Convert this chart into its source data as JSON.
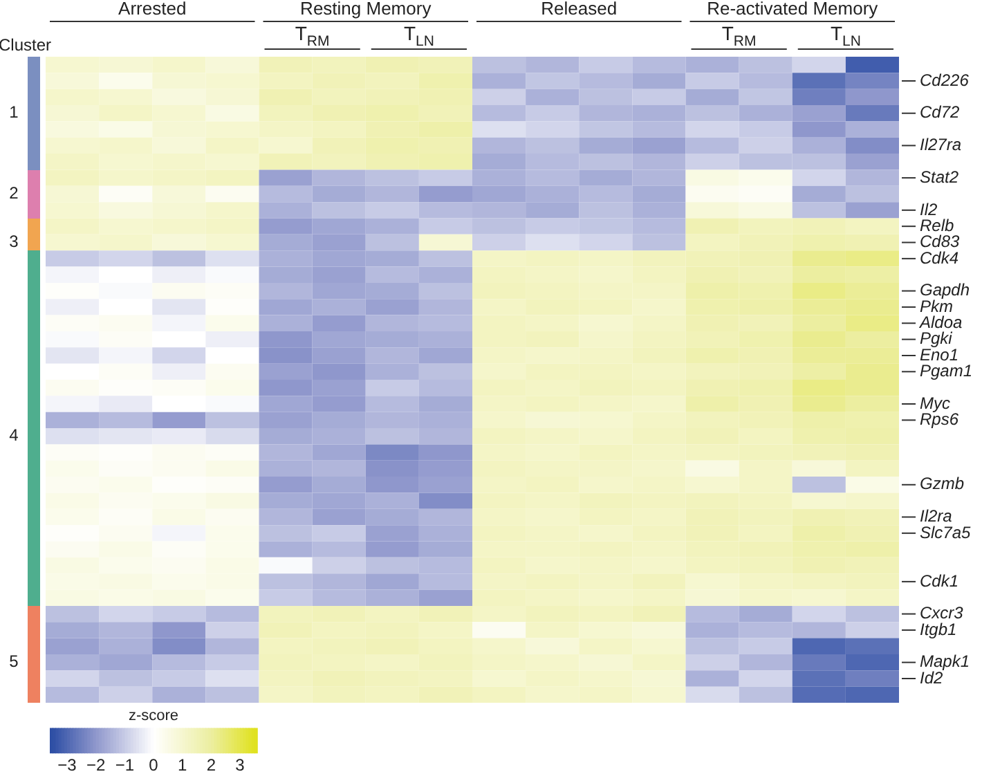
{
  "chart_data": {
    "type": "heatmap",
    "ylabel": "Cluster",
    "clabel": "z-score",
    "clim": [
      -3.6,
      3.6
    ],
    "cticks": [
      {
        "value": -3,
        "label": "−3"
      },
      {
        "value": -2,
        "label": "−2"
      },
      {
        "value": -1,
        "label": "−1"
      },
      0,
      1,
      2,
      3
    ],
    "annotations": [
      "Arrested",
      "Resting Memory",
      "Released",
      "Re-activated Memory",
      "T$_{RM}$",
      "T$_{LN}$",
      "T$_{RM}$",
      "T$_{LN}$"
    ],
    "categories": [
      null,
      null,
      null,
      null,
      null,
      null,
      null,
      null,
      null,
      null,
      null,
      null,
      null,
      null,
      null,
      null
    ],
    "y_categories": [
      null,
      null,
      null,
      "1",
      null,
      null,
      null,
      null,
      "2",
      null,
      null,
      "3",
      null,
      null,
      null,
      null,
      null,
      null,
      null,
      null,
      null,
      null,
      null,
      "4",
      null,
      null,
      null,
      null,
      null,
      null,
      null,
      null,
      null,
      null,
      null,
      null,
      null,
      "5",
      null,
      null
    ],
    "y2_categories": [
      null,
      "Cd226",
      null,
      "Cd72",
      null,
      "Il27ra",
      null,
      "Stat2",
      null,
      "Il2",
      "Relb",
      "Cd83",
      "Cdk4",
      null,
      "Gapdh",
      "Pkm",
      "Aldoa",
      "Pgki",
      "Eno1",
      "Pgam1",
      null,
      "Myc",
      "Rps6",
      null,
      null,
      null,
      "Gzmb",
      null,
      "Il2ra",
      "Slc7a5",
      null,
      null,
      "Cdk1",
      null,
      "Cxcr3",
      "Itgb1",
      null,
      "Mapk1",
      "Id2",
      null
    ],
    "cells": [
      [
        1.0,
        0.9,
        1.1,
        0.8,
        1.5,
        1.4,
        1.6,
        1.5,
        -1.2,
        -1.4,
        -1.0,
        -1.3,
        -1.5,
        -1.2,
        -0.8,
        -3.2
      ],
      [
        0.8,
        0.4,
        0.9,
        1.0,
        1.3,
        1.5,
        1.4,
        1.7,
        -1.5,
        -1.1,
        -1.3,
        -1.6,
        -1.0,
        -1.3,
        -2.8,
        -2.4
      ],
      [
        1.1,
        1.0,
        0.7,
        0.9,
        1.6,
        1.4,
        1.5,
        1.6,
        -0.9,
        -1.5,
        -1.2,
        -1.0,
        -1.6,
        -1.1,
        -2.5,
        -2.0
      ],
      [
        0.9,
        1.2,
        1.0,
        0.6,
        1.4,
        1.6,
        1.7,
        1.5,
        -1.3,
        -1.0,
        -1.4,
        -1.5,
        -1.2,
        -1.5,
        -1.8,
        -2.6
      ],
      [
        0.7,
        0.5,
        0.9,
        1.0,
        1.2,
        1.3,
        1.6,
        1.8,
        -0.6,
        -0.8,
        -1.1,
        -1.3,
        -0.8,
        -1.0,
        -2.0,
        -1.5
      ],
      [
        1.0,
        1.1,
        0.8,
        1.2,
        1.0,
        1.5,
        1.7,
        1.6,
        -1.4,
        -1.2,
        -1.6,
        -1.8,
        -1.3,
        -0.9,
        -1.5,
        -2.2
      ],
      [
        1.2,
        1.0,
        1.1,
        1.0,
        1.5,
        1.4,
        1.6,
        1.7,
        -1.6,
        -1.3,
        -1.2,
        -1.4,
        -0.9,
        -1.2,
        -1.2,
        -1.8
      ],
      [
        1.3,
        1.1,
        1.2,
        1.3,
        -1.8,
        -1.4,
        -1.2,
        -1.0,
        -1.5,
        -1.3,
        -1.6,
        -1.4,
        0.6,
        0.4,
        -0.8,
        -1.4
      ],
      [
        0.9,
        0.2,
        0.8,
        0.3,
        -1.3,
        -1.6,
        -1.4,
        -1.9,
        -1.7,
        -1.5,
        -1.3,
        -1.6,
        0.3,
        0.2,
        -1.6,
        -1.2
      ],
      [
        1.0,
        0.7,
        0.9,
        1.1,
        -1.5,
        -1.2,
        -1.0,
        -1.3,
        -1.4,
        -1.6,
        -1.2,
        -1.5,
        0.8,
        0.6,
        -1.2,
        -1.8
      ],
      [
        1.2,
        1.0,
        1.1,
        1.2,
        -1.9,
        -1.7,
        -1.5,
        -1.0,
        -1.2,
        -1.0,
        -1.1,
        -1.3,
        1.6,
        1.4,
        1.5,
        1.3
      ],
      [
        1.0,
        1.1,
        0.8,
        1.0,
        -1.6,
        -1.8,
        -1.2,
        0.9,
        -0.9,
        -0.6,
        -0.8,
        -1.2,
        1.3,
        1.5,
        1.7,
        1.6
      ],
      [
        -1.0,
        -0.8,
        -1.2,
        -0.6,
        -1.5,
        -1.7,
        -1.6,
        -1.2,
        1.2,
        1.3,
        1.2,
        1.4,
        1.5,
        1.6,
        2.2,
        2.3
      ],
      [
        -0.2,
        0.0,
        -0.3,
        -0.1,
        -1.6,
        -1.8,
        -1.3,
        -1.5,
        1.3,
        1.2,
        1.1,
        1.3,
        1.6,
        1.5,
        2.0,
        1.9
      ],
      [
        0.1,
        -0.1,
        0.3,
        0.2,
        -1.4,
        -1.7,
        -1.6,
        -1.2,
        1.4,
        1.3,
        1.2,
        1.2,
        1.8,
        1.7,
        2.3,
        2.1
      ],
      [
        -0.3,
        0.0,
        -0.5,
        0.1,
        -1.7,
        -1.5,
        -1.8,
        -1.4,
        1.2,
        1.4,
        1.3,
        1.1,
        1.7,
        1.8,
        2.1,
        2.2
      ],
      [
        0.2,
        0.3,
        -0.2,
        0.4,
        -1.5,
        -1.9,
        -1.4,
        -1.3,
        1.3,
        1.2,
        1.0,
        1.2,
        1.6,
        1.5,
        2.0,
        2.3
      ],
      [
        -0.1,
        0.2,
        0.0,
        -0.3,
        -2.0,
        -1.7,
        -1.6,
        -1.5,
        1.3,
        1.4,
        1.1,
        1.3,
        1.5,
        1.7,
        2.2,
        2.0
      ],
      [
        -0.5,
        -0.2,
        -0.8,
        0.0,
        -2.1,
        -1.8,
        -1.4,
        -1.7,
        1.2,
        1.1,
        1.2,
        1.4,
        1.7,
        1.6,
        2.1,
        2.1
      ],
      [
        0.0,
        0.2,
        -0.3,
        0.3,
        -1.8,
        -2.0,
        -1.5,
        -1.2,
        1.1,
        1.3,
        1.3,
        1.2,
        1.4,
        1.5,
        1.9,
        2.2
      ],
      [
        0.3,
        0.1,
        0.2,
        0.4,
        -2.0,
        -1.8,
        -1.0,
        -1.3,
        1.3,
        1.2,
        1.4,
        1.3,
        1.6,
        1.7,
        2.3,
        2.2
      ],
      [
        -0.2,
        -0.4,
        0.0,
        -0.1,
        -1.7,
        -1.9,
        -1.3,
        -1.6,
        1.2,
        1.3,
        1.2,
        1.1,
        1.8,
        1.6,
        2.2,
        2.0
      ],
      [
        -1.5,
        -1.3,
        -1.9,
        -1.2,
        -1.8,
        -1.6,
        -1.4,
        -1.5,
        1.1,
        0.9,
        1.0,
        1.2,
        1.4,
        1.5,
        1.8,
        1.7
      ],
      [
        -0.6,
        -0.5,
        -0.4,
        -0.7,
        -1.6,
        -1.5,
        -1.2,
        -1.4,
        1.3,
        1.2,
        1.1,
        1.3,
        1.5,
        1.3,
        1.7,
        1.8
      ],
      [
        0.2,
        0.1,
        0.3,
        0.2,
        -1.4,
        -1.7,
        -2.3,
        -2.0,
        1.2,
        1.1,
        1.3,
        1.2,
        1.3,
        1.4,
        1.5,
        1.6
      ],
      [
        0.4,
        0.2,
        0.3,
        0.5,
        -1.5,
        -1.4,
        -2.1,
        -1.9,
        1.3,
        1.2,
        1.2,
        1.1,
        0.6,
        1.2,
        0.8,
        1.3
      ],
      [
        0.3,
        0.4,
        0.1,
        0.2,
        -1.9,
        -1.6,
        -2.0,
        -1.8,
        1.2,
        1.3,
        1.1,
        1.2,
        1.0,
        1.2,
        -1.2,
        0.5
      ],
      [
        0.5,
        0.3,
        0.4,
        0.6,
        -1.6,
        -1.7,
        -1.5,
        -2.2,
        1.3,
        1.2,
        1.4,
        1.3,
        1.4,
        1.3,
        1.0,
        1.1
      ],
      [
        0.4,
        0.2,
        0.5,
        0.3,
        -1.4,
        -1.8,
        -1.6,
        -1.4,
        1.2,
        1.1,
        1.3,
        1.2,
        1.5,
        1.4,
        1.6,
        1.5
      ],
      [
        0.1,
        0.3,
        -0.2,
        0.4,
        -1.2,
        -1.0,
        -1.8,
        -1.5,
        1.3,
        1.2,
        1.1,
        1.3,
        1.5,
        1.3,
        1.8,
        1.6
      ],
      [
        0.3,
        0.5,
        0.2,
        0.4,
        -1.5,
        -1.3,
        -1.9,
        -1.6,
        1.2,
        1.2,
        1.3,
        1.2,
        1.4,
        1.5,
        1.7,
        1.8
      ],
      [
        0.6,
        0.4,
        0.3,
        0.5,
        -0.1,
        -0.9,
        -1.2,
        -1.3,
        1.3,
        1.1,
        1.2,
        1.1,
        1.3,
        1.4,
        1.6,
        1.5
      ],
      [
        0.5,
        0.6,
        0.4,
        0.5,
        -1.2,
        -1.4,
        -1.7,
        -1.3,
        1.2,
        1.3,
        1.2,
        1.4,
        1.0,
        1.2,
        1.3,
        1.4
      ],
      [
        0.6,
        0.5,
        0.6,
        0.4,
        -1.0,
        -1.3,
        -1.5,
        -1.8,
        1.3,
        1.2,
        1.1,
        1.2,
        0.9,
        1.1,
        1.0,
        1.2
      ],
      [
        -1.2,
        -0.8,
        -1.0,
        -1.3,
        1.4,
        1.5,
        1.3,
        1.5,
        1.2,
        1.4,
        1.3,
        1.5,
        -1.3,
        -1.6,
        -0.8,
        -1.2
      ],
      [
        -1.6,
        -1.4,
        -2.0,
        -0.9,
        1.5,
        1.3,
        1.4,
        1.2,
        0.3,
        1.2,
        1.0,
        0.8,
        -1.5,
        -1.3,
        -1.4,
        -0.9
      ],
      [
        -1.8,
        -1.5,
        -2.2,
        -1.4,
        1.3,
        1.4,
        1.5,
        1.3,
        1.1,
        0.8,
        1.2,
        1.0,
        -1.2,
        -1.0,
        -3.0,
        -2.8
      ],
      [
        -1.5,
        -1.7,
        -1.3,
        -1.0,
        1.4,
        1.3,
        1.2,
        1.4,
        1.2,
        1.1,
        0.9,
        1.2,
        -0.9,
        -1.4,
        -2.6,
        -3.0
      ],
      [
        -0.8,
        -1.2,
        -1.0,
        -0.6,
        1.3,
        1.5,
        1.4,
        1.3,
        1.0,
        1.2,
        1.1,
        0.9,
        -1.5,
        -0.8,
        -2.8,
        -2.5
      ],
      [
        -1.3,
        -0.9,
        -1.5,
        -1.2,
        1.2,
        1.4,
        1.3,
        1.5,
        1.3,
        1.1,
        1.2,
        1.0,
        -0.7,
        -1.2,
        -2.9,
        -3.0
      ]
    ]
  }
}
